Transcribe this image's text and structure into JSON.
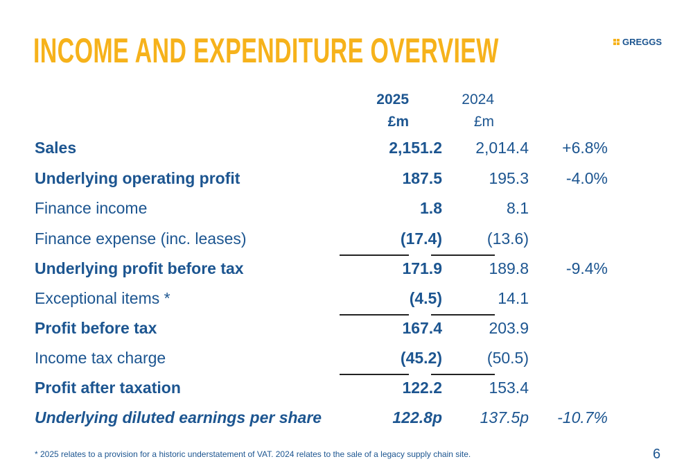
{
  "title": "INCOME AND EXPENDITURE OVERVIEW",
  "logo": "GREGGS",
  "headers": {
    "y2025": "2025",
    "unit2025": "£m",
    "y2024": "2024",
    "unit2024": "£m"
  },
  "rows": [
    {
      "label": "Sales",
      "v2025": "2,151.2",
      "v2024": "2,014.4",
      "change": "+6.8%"
    },
    {
      "label": "Underlying operating profit",
      "v2025": "187.5",
      "v2024": "195.3",
      "change": "-4.0%"
    },
    {
      "label": "Finance income",
      "v2025": "1.8",
      "v2024": "8.1",
      "change": ""
    },
    {
      "label": "Finance expense (inc. leases)",
      "v2025": "(17.4)",
      "v2024": "(13.6)",
      "change": ""
    },
    {
      "label": "Underlying profit before tax",
      "v2025": "171.9",
      "v2024": "189.8",
      "change": "-9.4%"
    },
    {
      "label": "Exceptional items *",
      "v2025": "(4.5)",
      "v2024": "14.1",
      "change": ""
    },
    {
      "label": "Profit before tax",
      "v2025": "167.4",
      "v2024": "203.9",
      "change": ""
    },
    {
      "label": "Income tax charge",
      "v2025": "(45.2)",
      "v2024": "(50.5)",
      "change": ""
    },
    {
      "label": "Profit after taxation",
      "v2025": "122.2",
      "v2024": "153.4",
      "change": ""
    },
    {
      "label": "Underlying diluted earnings per share",
      "v2025": "122.8p",
      "v2024": "137.5p",
      "change": "-10.7%"
    }
  ],
  "footnote": "* 2025 relates to a provision for a historic understatement of VAT. 2024 relates to the sale of a legacy supply chain site.",
  "page_number": "6",
  "colors": {
    "title": "#f6b21b",
    "text": "#1c5590"
  }
}
